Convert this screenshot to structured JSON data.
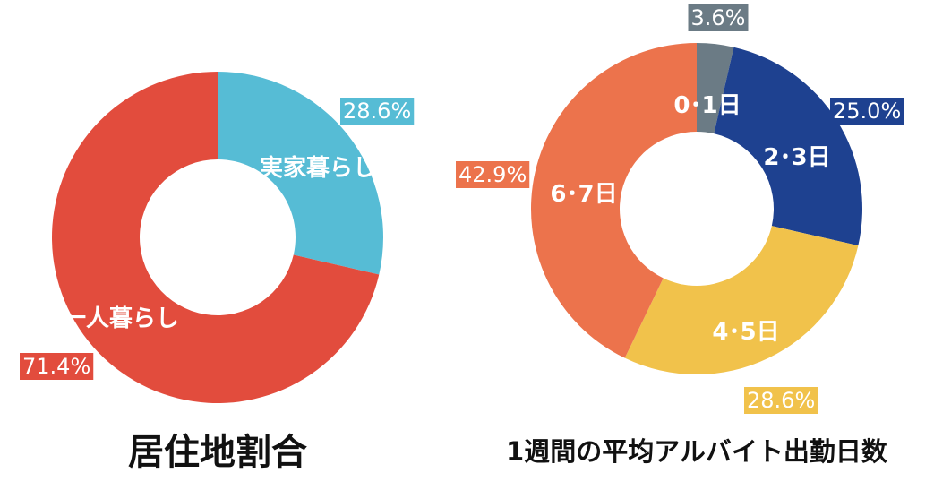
{
  "chart_data": [
    {
      "type": "pie",
      "title": "居住地割合",
      "start_angle_deg": 0,
      "slices": [
        {
          "label": "実家暮らし",
          "value": 28.6,
          "pct_text": "28.6%",
          "color": "#56bcd5"
        },
        {
          "label": "一人暮らし",
          "value": 71.4,
          "pct_text": "71.4%",
          "color": "#e24c3d"
        }
      ]
    },
    {
      "type": "pie",
      "title": "1週間の平均アルバイト出勤日数",
      "start_angle_deg": 0,
      "slices": [
        {
          "label": "0･1日",
          "value": 3.6,
          "pct_text": "3.6%",
          "color": "#6b7b85"
        },
        {
          "label": "2･3日",
          "value": 25.0,
          "pct_text": "25.0%",
          "color": "#1e4190"
        },
        {
          "label": "4･5日",
          "value": 28.6,
          "pct_text": "28.6%",
          "color": "#f1c24b"
        },
        {
          "label": "6･7日",
          "value": 42.9,
          "pct_text": "42.9%",
          "color": "#ec734c"
        }
      ]
    }
  ]
}
